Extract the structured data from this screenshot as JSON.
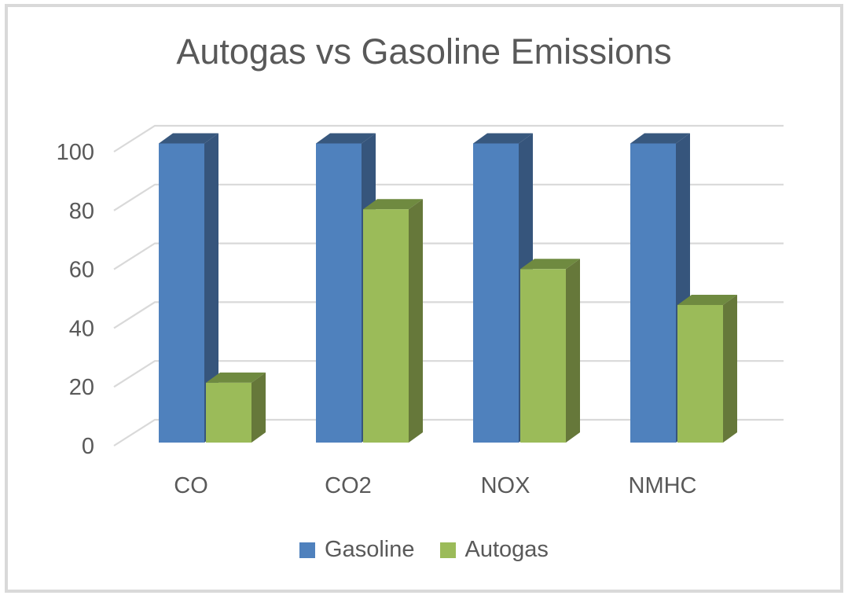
{
  "window": {
    "background": "#ffffff",
    "border_color": "#d9d9d9"
  },
  "chart_data": {
    "type": "bar",
    "variant": "3d-clustered-column",
    "title": "Autogas vs Gasoline Emissions",
    "categories": [
      "CO",
      "CO2",
      "NOX",
      "NMHC"
    ],
    "series": [
      {
        "name": "Gasoline",
        "values": [
          100,
          100,
          100,
          100
        ],
        "color": "#4f81bd",
        "color_top": "#38587e",
        "color_side": "#36557c"
      },
      {
        "name": "Autogas",
        "values": [
          20,
          78,
          58,
          46
        ],
        "color": "#9bbb59",
        "color_top": "#6f8a40",
        "color_side": "#66783a"
      }
    ],
    "xlabel": "",
    "ylabel": "",
    "ylim": [
      0,
      100
    ],
    "yticks": [
      0,
      20,
      40,
      60,
      80,
      100
    ],
    "grid": true,
    "gridline_color": "#d9d9d9",
    "text_color": "#595959",
    "legend_position": "bottom"
  }
}
